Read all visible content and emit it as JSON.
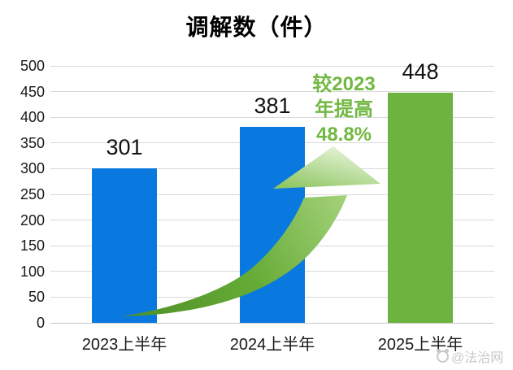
{
  "title": "调解数（件）",
  "colors": {
    "bar_blue": "#0a79df",
    "bar_green": "#6db33f",
    "annotation_green": "#72b843",
    "gridline": "#d9d9d9",
    "baseline": "#c9c9c9",
    "axis_text": "#1a1a1a",
    "arrow_dark": "#4e8f26",
    "arrow_mid": "#66ab36",
    "arrow_light": "#a9d580",
    "arrow_head_light": "#e3f2d4"
  },
  "chart_data": {
    "type": "bar",
    "title": "调解数（件）",
    "categories": [
      "2023上半年",
      "2024上半年",
      "2025上半年"
    ],
    "values": [
      301,
      381,
      448
    ],
    "bar_colors": [
      "#0a79df",
      "#0a79df",
      "#6db33f"
    ],
    "xlabel": "",
    "ylabel": "",
    "ylim": [
      0,
      500
    ],
    "ytick_step": 50,
    "grid": true,
    "legend": false,
    "annotation": {
      "lines": [
        "较2023",
        "年提高",
        "48.8%"
      ],
      "color": "#72b843",
      "meaning": "increase of 48.8% vs 2023"
    }
  },
  "watermark": {
    "text": "@法治网"
  }
}
